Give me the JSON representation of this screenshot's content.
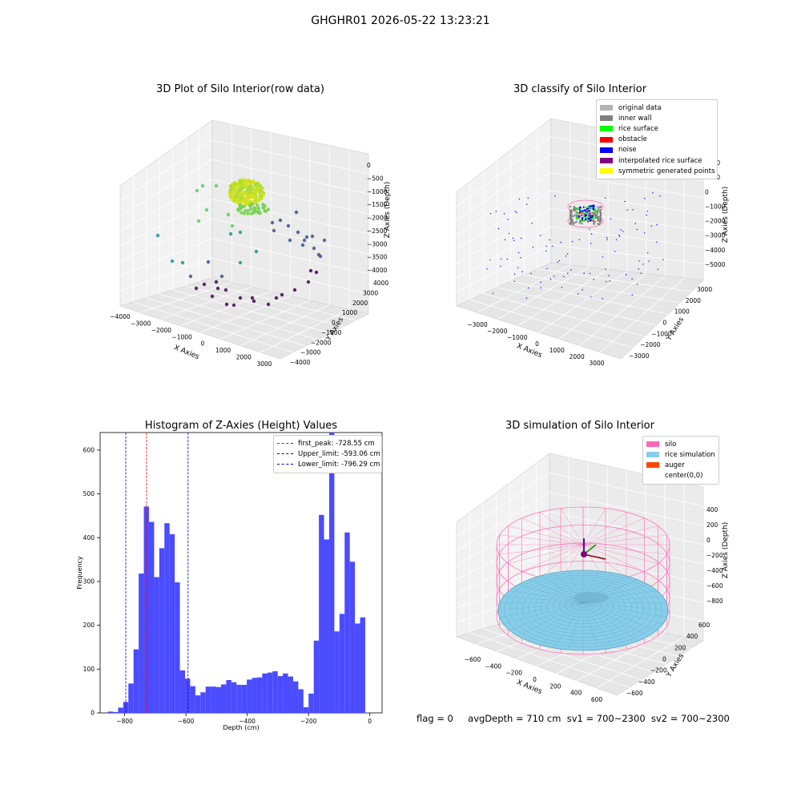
{
  "figure": {
    "title": "GHGHR01 2026-05-22 13:23:21",
    "status": {
      "flag": "flag = 0",
      "avg_depth": "avgDepth = 710 cm",
      "sv1": "sv1 = 700~2300",
      "sv2": "sv2 = 700~2300"
    }
  },
  "chart_data": [
    {
      "type": "scatter",
      "dimensions": 3,
      "title": "3D Plot of Silo Interior(row data)",
      "xlabel": "X Axies",
      "ylabel": "Y Axies",
      "zlabel": "Z Axies (Depth)",
      "xlim": [
        -4000,
        3500
      ],
      "ylim": [
        -4000,
        4500
      ],
      "zlim": [
        -4200,
        200
      ],
      "x_ticks": [
        "−4000",
        "−3000",
        "−2000",
        "−1000",
        "0",
        "1000",
        "2000",
        "3000"
      ],
      "y_ticks": [
        "−4000",
        "−3000",
        "−2000",
        "−1000",
        "0",
        "1000",
        "2000",
        "3000",
        "4000"
      ],
      "z_ticks": [
        "0",
        "−500",
        "−1000",
        "−1500",
        "−2000",
        "−2500",
        "−3000",
        "−3500",
        "−4000"
      ],
      "colormap": "viridis (by depth)",
      "grid": true
    },
    {
      "type": "scatter",
      "dimensions": 3,
      "title": "3D classify of Silo Interior",
      "xlabel": "X Axies",
      "ylabel": "Y Axies",
      "zlabel": "Z Axies (Depth)",
      "x_ticks": [
        "−3000",
        "−2000",
        "−1000",
        "0",
        "1000",
        "2000",
        "3000"
      ],
      "y_ticks": [
        "−3000",
        "−2000",
        "−1000",
        "0",
        "1000",
        "2000",
        "3000"
      ],
      "z_ticks": [
        "2000",
        "1000",
        "0",
        "−1000",
        "−2000",
        "−3000",
        "−4000",
        "−5000"
      ],
      "legend_position": "upper-right",
      "legend": [
        {
          "label": "original data",
          "color": "#b3b3b3"
        },
        {
          "label": "inner wall",
          "color": "#808080"
        },
        {
          "label": "rice surface",
          "color": "#00ff00"
        },
        {
          "label": "obstacle",
          "color": "#ff0000"
        },
        {
          "label": "noise",
          "color": "#0000ff"
        },
        {
          "label": "interpolated rice surface",
          "color": "#800080"
        },
        {
          "label": "symmetric generated points",
          "color": "#ffff00"
        }
      ],
      "grid": true
    },
    {
      "type": "bar",
      "subtype": "histogram",
      "title": "Histogram of Z-Axies (Height) Values",
      "xlabel": "Depth (cm)",
      "ylabel": "Frequency",
      "xlim": [
        -880,
        40
      ],
      "ylim": [
        0,
        640
      ],
      "x_ticks": [
        -800,
        -600,
        -400,
        -200,
        0
      ],
      "x_tick_labels": [
        "−800",
        "−600",
        "−400",
        "−200",
        "0"
      ],
      "y_ticks": [
        0,
        100,
        200,
        300,
        400,
        500,
        600
      ],
      "bin_width": 16.8,
      "bin_start": -855,
      "values": [
        3,
        2,
        12,
        25,
        67,
        145,
        318,
        471,
        436,
        310,
        376,
        433,
        408,
        298,
        97,
        78,
        61,
        40,
        47,
        60,
        60,
        59,
        65,
        75,
        70,
        64,
        64,
        76,
        80,
        81,
        90,
        92,
        95,
        84,
        90,
        83,
        72,
        54,
        13,
        44,
        165,
        452,
        396,
        640,
        186,
        226,
        412,
        345,
        204,
        218
      ],
      "bar_color": "#4b4bff",
      "vlines": [
        {
          "label": "first_peak: -728.55 cm",
          "x": -728.55,
          "color": "#ff0000"
        },
        {
          "label": "Upper_limit: -593.06 cm",
          "x": -593.06,
          "color": "#0000cc"
        },
        {
          "label": "Lower_limit: -796.29 cm",
          "x": -796.29,
          "color": "#0000cc"
        }
      ],
      "legend_position": "upper-right"
    },
    {
      "type": "scatter",
      "dimensions": 3,
      "title": "3D simulation of Silo Interior",
      "xlabel": "X Axies",
      "ylabel": "Y Axies",
      "zlabel": "Z Axies (Depth)",
      "x_ticks": [
        "−600",
        "−400",
        "−200",
        "0",
        "200",
        "400",
        "600"
      ],
      "y_ticks": [
        "−600",
        "−400",
        "−200",
        "0",
        "200",
        "400",
        "600"
      ],
      "z_ticks": [
        "400",
        "200",
        "0",
        "−200",
        "−400",
        "−600",
        "−800"
      ],
      "legend_position": "upper-right",
      "legend": [
        {
          "label": "silo",
          "color": "#ff69b4"
        },
        {
          "label": "rice simulation",
          "color": "#87ceeb"
        },
        {
          "label": "auger",
          "color": "#ff4500"
        },
        {
          "label": "center(0,0)",
          "color": "#ffffff"
        }
      ],
      "grid": true
    }
  ]
}
